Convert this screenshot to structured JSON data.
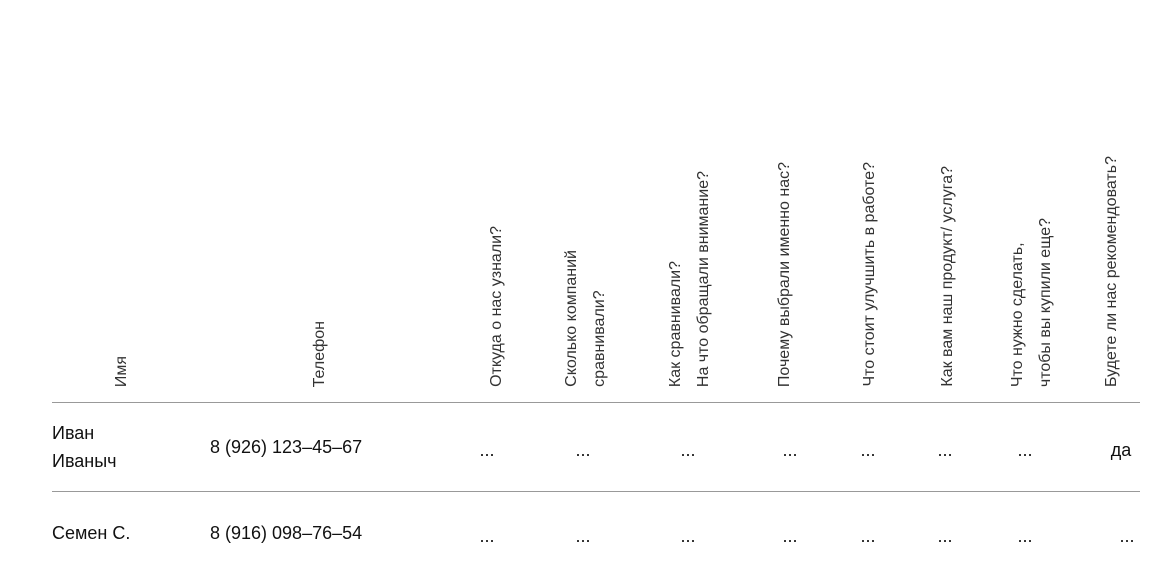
{
  "table": {
    "headers": [
      "Имя",
      "Телефон",
      "Откуда о нас узнали?",
      "Сколько компаний\nсравнивали?",
      "Как сравнивали?\nНа что обращали внимание?",
      "Почему выбрали именно нас?",
      "Что стоит улучшить в работе?",
      "Как вам наш продукт/ услуга?",
      "Что нужно сделать,\nчтобы вы купили еще?",
      "Будете ли нас рекомендовать?"
    ],
    "rows": [
      {
        "name": "Иван\nИваныч",
        "phone": "8 (926) 123–45–67",
        "answers": [
          "...",
          "...",
          "...",
          "...",
          "...",
          "...",
          "...",
          "да"
        ]
      },
      {
        "name": "Семен С.",
        "phone": "8 (916) 098–76–54",
        "answers": [
          "...",
          "...",
          "...",
          "...",
          "...",
          "...",
          "...",
          "..."
        ]
      }
    ]
  }
}
